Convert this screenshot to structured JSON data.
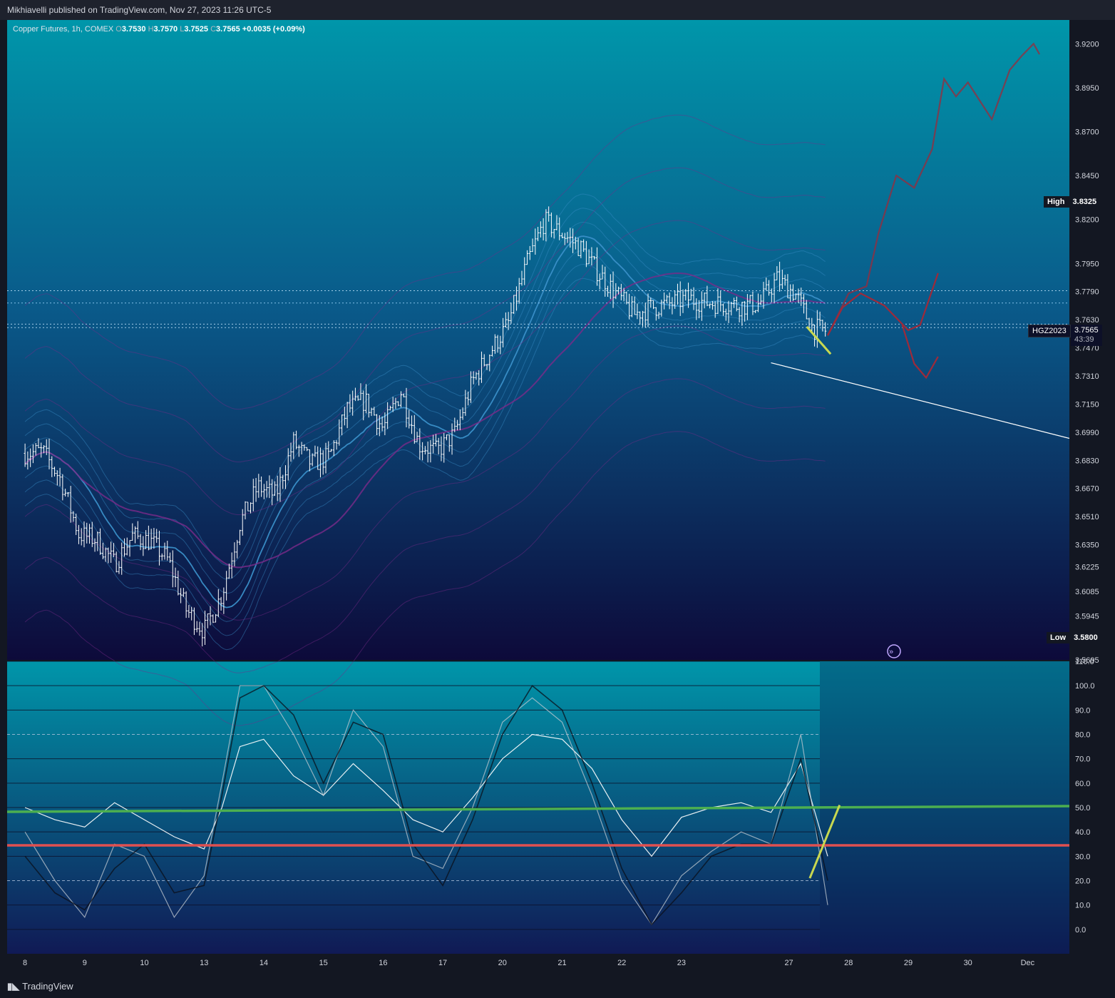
{
  "header": {
    "published": "Mikhiavelli published on TradingView.com, Nov 27, 2023 11:26 UTC-5"
  },
  "legend": {
    "symbol": "Copper Futures, 1h, COMEX",
    "o_label": "O",
    "o": "3.7530",
    "h_label": "H",
    "h": "3.7570",
    "l_label": "L",
    "l": "3.7525",
    "c_label": "C",
    "c": "3.7565",
    "change": "+0.0035 (+0.09%)"
  },
  "markers": {
    "high_label": "High",
    "high_value": "3.8325",
    "low_label": "Low",
    "low_value": "3.5800",
    "ticker": "HGZ2023",
    "price": "3.7565",
    "countdown": "43:39"
  },
  "footer": {
    "brand": "TradingView"
  },
  "colors": {
    "bg_top": "#0096aa",
    "bg_bottom": "#0d0a3a",
    "candles": "#ffffff",
    "ribbon": "#3a8fc8",
    "envelope": "#7a2a8a",
    "forecast": "#9e2a3a",
    "green_line": "#4caf50",
    "red_line": "#e05050",
    "yellow": "#c8d850"
  },
  "chart_data": [
    {
      "type": "candlestick",
      "title": "Copper Futures, 1h, COMEX",
      "y_ticks": [
        "3.9200",
        "3.8950",
        "3.8700",
        "3.8450",
        "3.8200",
        "3.7950",
        "3.7790",
        "3.7630",
        "3.7470",
        "3.7310",
        "3.7150",
        "3.6990",
        "3.6830",
        "3.6670",
        "3.6510",
        "3.6350",
        "3.6225",
        "3.6085",
        "3.5945",
        "3.5695"
      ],
      "y_tick_values": [
        3.92,
        3.895,
        3.87,
        3.845,
        3.82,
        3.795,
        3.779,
        3.763,
        3.747,
        3.731,
        3.715,
        3.699,
        3.683,
        3.667,
        3.651,
        3.635,
        3.6225,
        3.6085,
        3.5945,
        3.5695
      ],
      "ylim": [
        3.5695,
        3.9335
      ],
      "x_ticks": [
        "8",
        "9",
        "10",
        "13",
        "14",
        "15",
        "16",
        "17",
        "20",
        "21",
        "22",
        "23",
        "27",
        "28",
        "29",
        "30",
        "Dec"
      ],
      "x_tick_days": [
        0,
        1,
        2,
        3,
        4,
        5,
        6,
        7,
        8,
        9,
        10,
        11,
        12.8,
        13.8,
        14.8,
        15.8,
        16.8
      ],
      "xlim": [
        -0.3,
        17.5
      ],
      "last_index_day": 13.45,
      "high": 3.8325,
      "low": 3.58,
      "last": 3.7565,
      "path_days": [
        0,
        0.3,
        0.6,
        0.9,
        1.2,
        1.5,
        1.8,
        2.1,
        2.4,
        2.7,
        3.0,
        3.3,
        3.6,
        3.9,
        4.2,
        4.5,
        4.8,
        5.1,
        5.4,
        5.7,
        6.0,
        6.3,
        6.6,
        6.9,
        7.2,
        7.5,
        7.8,
        8.1,
        8.4,
        8.7,
        9.0,
        9.3,
        9.6,
        9.9,
        10.2,
        10.5,
        10.8,
        11.1,
        11.4,
        11.7,
        12.0,
        12.3,
        12.6,
        12.9,
        13.2,
        13.45
      ],
      "path_prices": [
        3.687,
        3.688,
        3.672,
        3.641,
        3.638,
        3.624,
        3.64,
        3.637,
        3.626,
        3.598,
        3.586,
        3.607,
        3.647,
        3.668,
        3.663,
        3.693,
        3.681,
        3.685,
        3.712,
        3.717,
        3.701,
        3.722,
        3.692,
        3.688,
        3.698,
        3.728,
        3.745,
        3.761,
        3.794,
        3.819,
        3.812,
        3.804,
        3.79,
        3.778,
        3.766,
        3.77,
        3.772,
        3.775,
        3.773,
        3.772,
        3.771,
        3.772,
        3.786,
        3.778,
        3.758,
        3.7565
      ]
    },
    {
      "type": "line",
      "y_ticks": [
        "110.0",
        "100.0",
        "90.0",
        "80.0",
        "70.0",
        "60.0",
        "50.0",
        "40.0",
        "30.0",
        "20.0",
        "10.0",
        "0.0"
      ],
      "y_tick_values": [
        110,
        100,
        90,
        80,
        70,
        60,
        50,
        40,
        30,
        20,
        10,
        0
      ],
      "ylim": [
        -10,
        110
      ],
      "x": [
        0,
        0.5,
        1,
        1.5,
        2,
        2.5,
        3,
        3.3,
        3.6,
        4,
        4.5,
        5,
        5.5,
        6,
        6.5,
        7,
        7.5,
        8,
        8.5,
        9,
        9.5,
        10,
        10.5,
        11,
        11.5,
        12,
        12.5,
        13,
        13.45
      ],
      "series": [
        {
          "values": [
            50,
            45,
            42,
            52,
            45,
            38,
            33,
            50,
            75,
            78,
            63,
            55,
            68,
            57,
            45,
            40,
            54,
            70,
            80,
            78,
            66,
            45,
            30,
            46,
            50,
            52,
            48,
            68,
            30
          ]
        },
        {
          "values": [
            40,
            20,
            5,
            35,
            30,
            5,
            22,
            60,
            100,
            100,
            80,
            55,
            90,
            75,
            30,
            25,
            50,
            85,
            95,
            85,
            55,
            20,
            2,
            22,
            32,
            40,
            35,
            80,
            10
          ]
        },
        {
          "values": [
            30,
            15,
            8,
            25,
            35,
            15,
            18,
            55,
            95,
            100,
            88,
            60,
            85,
            80,
            35,
            18,
            45,
            80,
            100,
            90,
            60,
            25,
            2,
            15,
            30,
            35,
            35,
            70,
            20
          ]
        }
      ],
      "horizontal_levels": [
        50,
        34.5
      ]
    }
  ]
}
